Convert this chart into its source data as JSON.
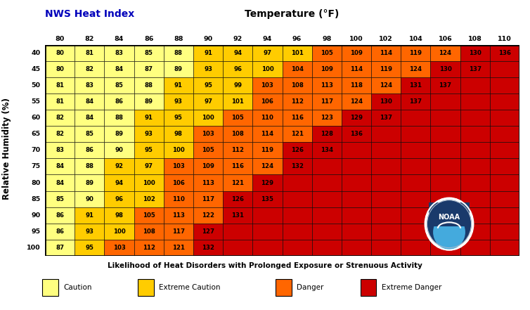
{
  "title_left": "NWS Heat Index",
  "title_center": "Temperature (°F)",
  "xlabel": "Likelihood of Heat Disorders with Prolonged Exposure or Strenuous Activity",
  "ylabel": "Relative Humidity (%)",
  "temp_cols": [
    80,
    82,
    84,
    86,
    88,
    90,
    92,
    94,
    96,
    98,
    100,
    102,
    104,
    106,
    108,
    110
  ],
  "humidity_rows": [
    40,
    45,
    50,
    55,
    60,
    65,
    70,
    75,
    80,
    85,
    90,
    95,
    100
  ],
  "table_data": [
    [
      80,
      81,
      83,
      85,
      88,
      91,
      94,
      97,
      101,
      105,
      109,
      114,
      119,
      124,
      130,
      136
    ],
    [
      80,
      82,
      84,
      87,
      89,
      93,
      96,
      100,
      104,
      109,
      114,
      119,
      124,
      130,
      137,
      null
    ],
    [
      81,
      83,
      85,
      88,
      91,
      95,
      99,
      103,
      108,
      113,
      118,
      124,
      131,
      137,
      null,
      null
    ],
    [
      81,
      84,
      86,
      89,
      93,
      97,
      101,
      106,
      112,
      117,
      124,
      130,
      137,
      null,
      null,
      null
    ],
    [
      82,
      84,
      88,
      91,
      95,
      100,
      105,
      110,
      116,
      123,
      129,
      137,
      null,
      null,
      null,
      null
    ],
    [
      82,
      85,
      89,
      93,
      98,
      103,
      108,
      114,
      121,
      128,
      136,
      null,
      null,
      null,
      null,
      null
    ],
    [
      83,
      86,
      90,
      95,
      100,
      105,
      112,
      119,
      126,
      134,
      null,
      null,
      null,
      null,
      null,
      null
    ],
    [
      84,
      88,
      92,
      97,
      103,
      109,
      116,
      124,
      132,
      null,
      null,
      null,
      null,
      null,
      null,
      null
    ],
    [
      84,
      89,
      94,
      100,
      106,
      113,
      121,
      129,
      null,
      null,
      null,
      null,
      null,
      null,
      null,
      null
    ],
    [
      85,
      90,
      96,
      102,
      110,
      117,
      126,
      135,
      null,
      null,
      null,
      null,
      null,
      null,
      null,
      null
    ],
    [
      86,
      91,
      98,
      105,
      113,
      122,
      131,
      null,
      null,
      null,
      null,
      null,
      null,
      null,
      null,
      null
    ],
    [
      86,
      93,
      100,
      108,
      117,
      127,
      null,
      null,
      null,
      null,
      null,
      null,
      null,
      null,
      null,
      null
    ],
    [
      87,
      95,
      103,
      112,
      121,
      132,
      null,
      null,
      null,
      null,
      null,
      null,
      null,
      null,
      null,
      null
    ]
  ],
  "color_caution": "#FFFF80",
  "color_extreme_caution": "#FFCC00",
  "color_danger": "#FF6600",
  "color_extreme_danger": "#CC0000",
  "color_empty": "#CC0000",
  "title_left_color": "#0000BB",
  "background_color": "#FFFFFF",
  "legend_items": [
    [
      "#FFFF80",
      "Caution"
    ],
    [
      "#FFCC00",
      "Extreme Caution"
    ],
    [
      "#FF6600",
      "Danger"
    ],
    [
      "#CC0000",
      "Extreme Danger"
    ]
  ]
}
